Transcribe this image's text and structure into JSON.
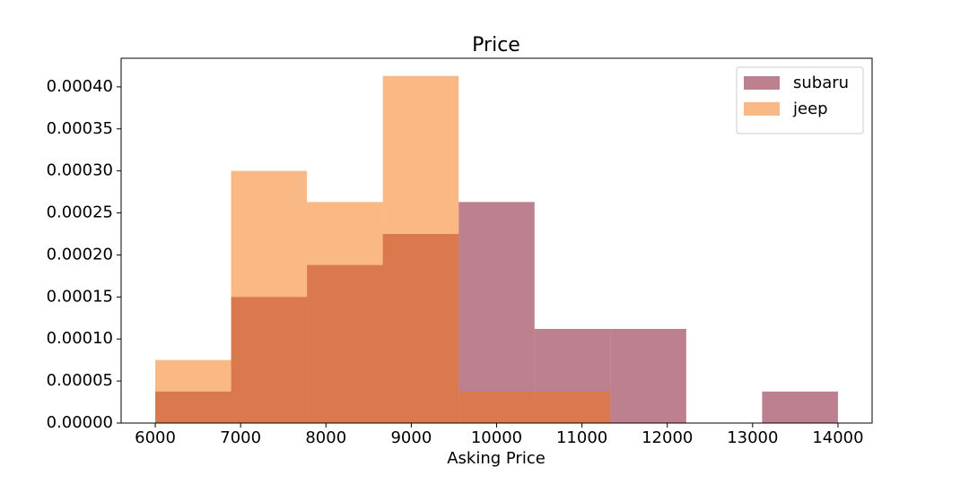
{
  "chart_data": {
    "type": "histogram",
    "title": "Price",
    "x_label": "Asking Price",
    "bins": [
      6000,
      6888.89,
      7777.78,
      8666.67,
      9555.56,
      10444.44,
      11333.33,
      12222.22,
      13111.11,
      14000
    ],
    "series": [
      {
        "name": "subaru",
        "color": "#7b011f",
        "values": [
          3.75e-05,
          0.00015,
          0.000188,
          0.000225,
          0.000263,
          0.000112,
          0.000112,
          0,
          3.75e-05
        ]
      },
      {
        "name": "jeep",
        "color": "#f5710b",
        "values": [
          7.5e-05,
          0.0003,
          0.000263,
          0.000413,
          3.75e-05,
          3.75e-05,
          0,
          0,
          0
        ]
      }
    ],
    "alpha": 0.5,
    "xlim": [
      5600,
      14400
    ],
    "ylim": [
      0,
      0.000434
    ],
    "xticks": [
      6000,
      7000,
      8000,
      9000,
      10000,
      11000,
      12000,
      13000,
      14000
    ],
    "yticks": [
      {
        "value": 0,
        "label": "0.00000"
      },
      {
        "value": 5e-05,
        "label": "0.00005"
      },
      {
        "value": 0.0001,
        "label": "0.00010"
      },
      {
        "value": 0.00015,
        "label": "0.00015"
      },
      {
        "value": 0.0002,
        "label": "0.00020"
      },
      {
        "value": 0.00025,
        "label": "0.00025"
      },
      {
        "value": 0.0003,
        "label": "0.00030"
      },
      {
        "value": 0.00035,
        "label": "0.00035"
      },
      {
        "value": 0.0004,
        "label": "0.00040"
      }
    ],
    "legend": "upper right",
    "grid": false
  }
}
